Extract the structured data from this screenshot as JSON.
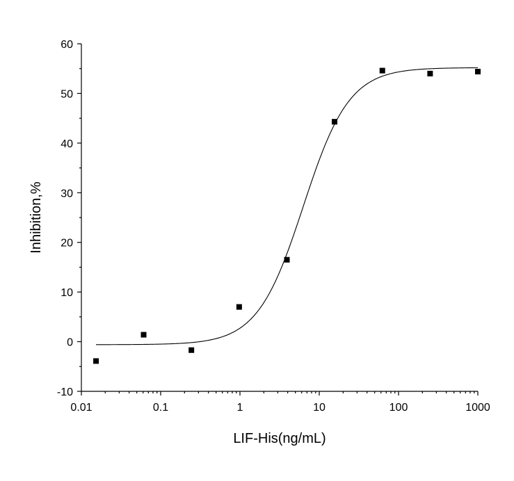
{
  "chart_data": {
    "type": "scatter",
    "title": "",
    "xlabel": "LIF-His(ng/mL)",
    "ylabel": "Inhibition,%",
    "xscale": "log",
    "xlim": [
      0.01,
      1000
    ],
    "ylim": [
      -10,
      60
    ],
    "grid": false,
    "legend": "none",
    "x_ticks": [
      0.01,
      0.1,
      1,
      10,
      100,
      1000
    ],
    "x_tick_labels": [
      "0.01",
      "0.1",
      "1",
      "10",
      "100",
      "1000"
    ],
    "y_ticks": [
      -10,
      0,
      10,
      20,
      30,
      40,
      50,
      60
    ],
    "y_tick_labels": [
      "-10",
      "0",
      "10",
      "20",
      "30",
      "40",
      "50",
      "60"
    ],
    "series": [
      {
        "type": "scatter",
        "marker": "square",
        "color": "#000000",
        "x": [
          0.0153,
          0.061,
          0.244,
          0.977,
          3.91,
          15.6,
          62.5,
          250,
          1000
        ],
        "y": [
          -3.9,
          1.4,
          -1.7,
          7.0,
          16.5,
          44.3,
          54.6,
          54.0,
          54.4
        ]
      },
      {
        "type": "line",
        "curve": "four-parameter-logistic",
        "color": "#000000",
        "bottom": -0.6,
        "top": 55.2,
        "ec50": 6.3,
        "hill_slope": 1.5,
        "x_range": [
          0.0153,
          1000
        ]
      }
    ]
  }
}
